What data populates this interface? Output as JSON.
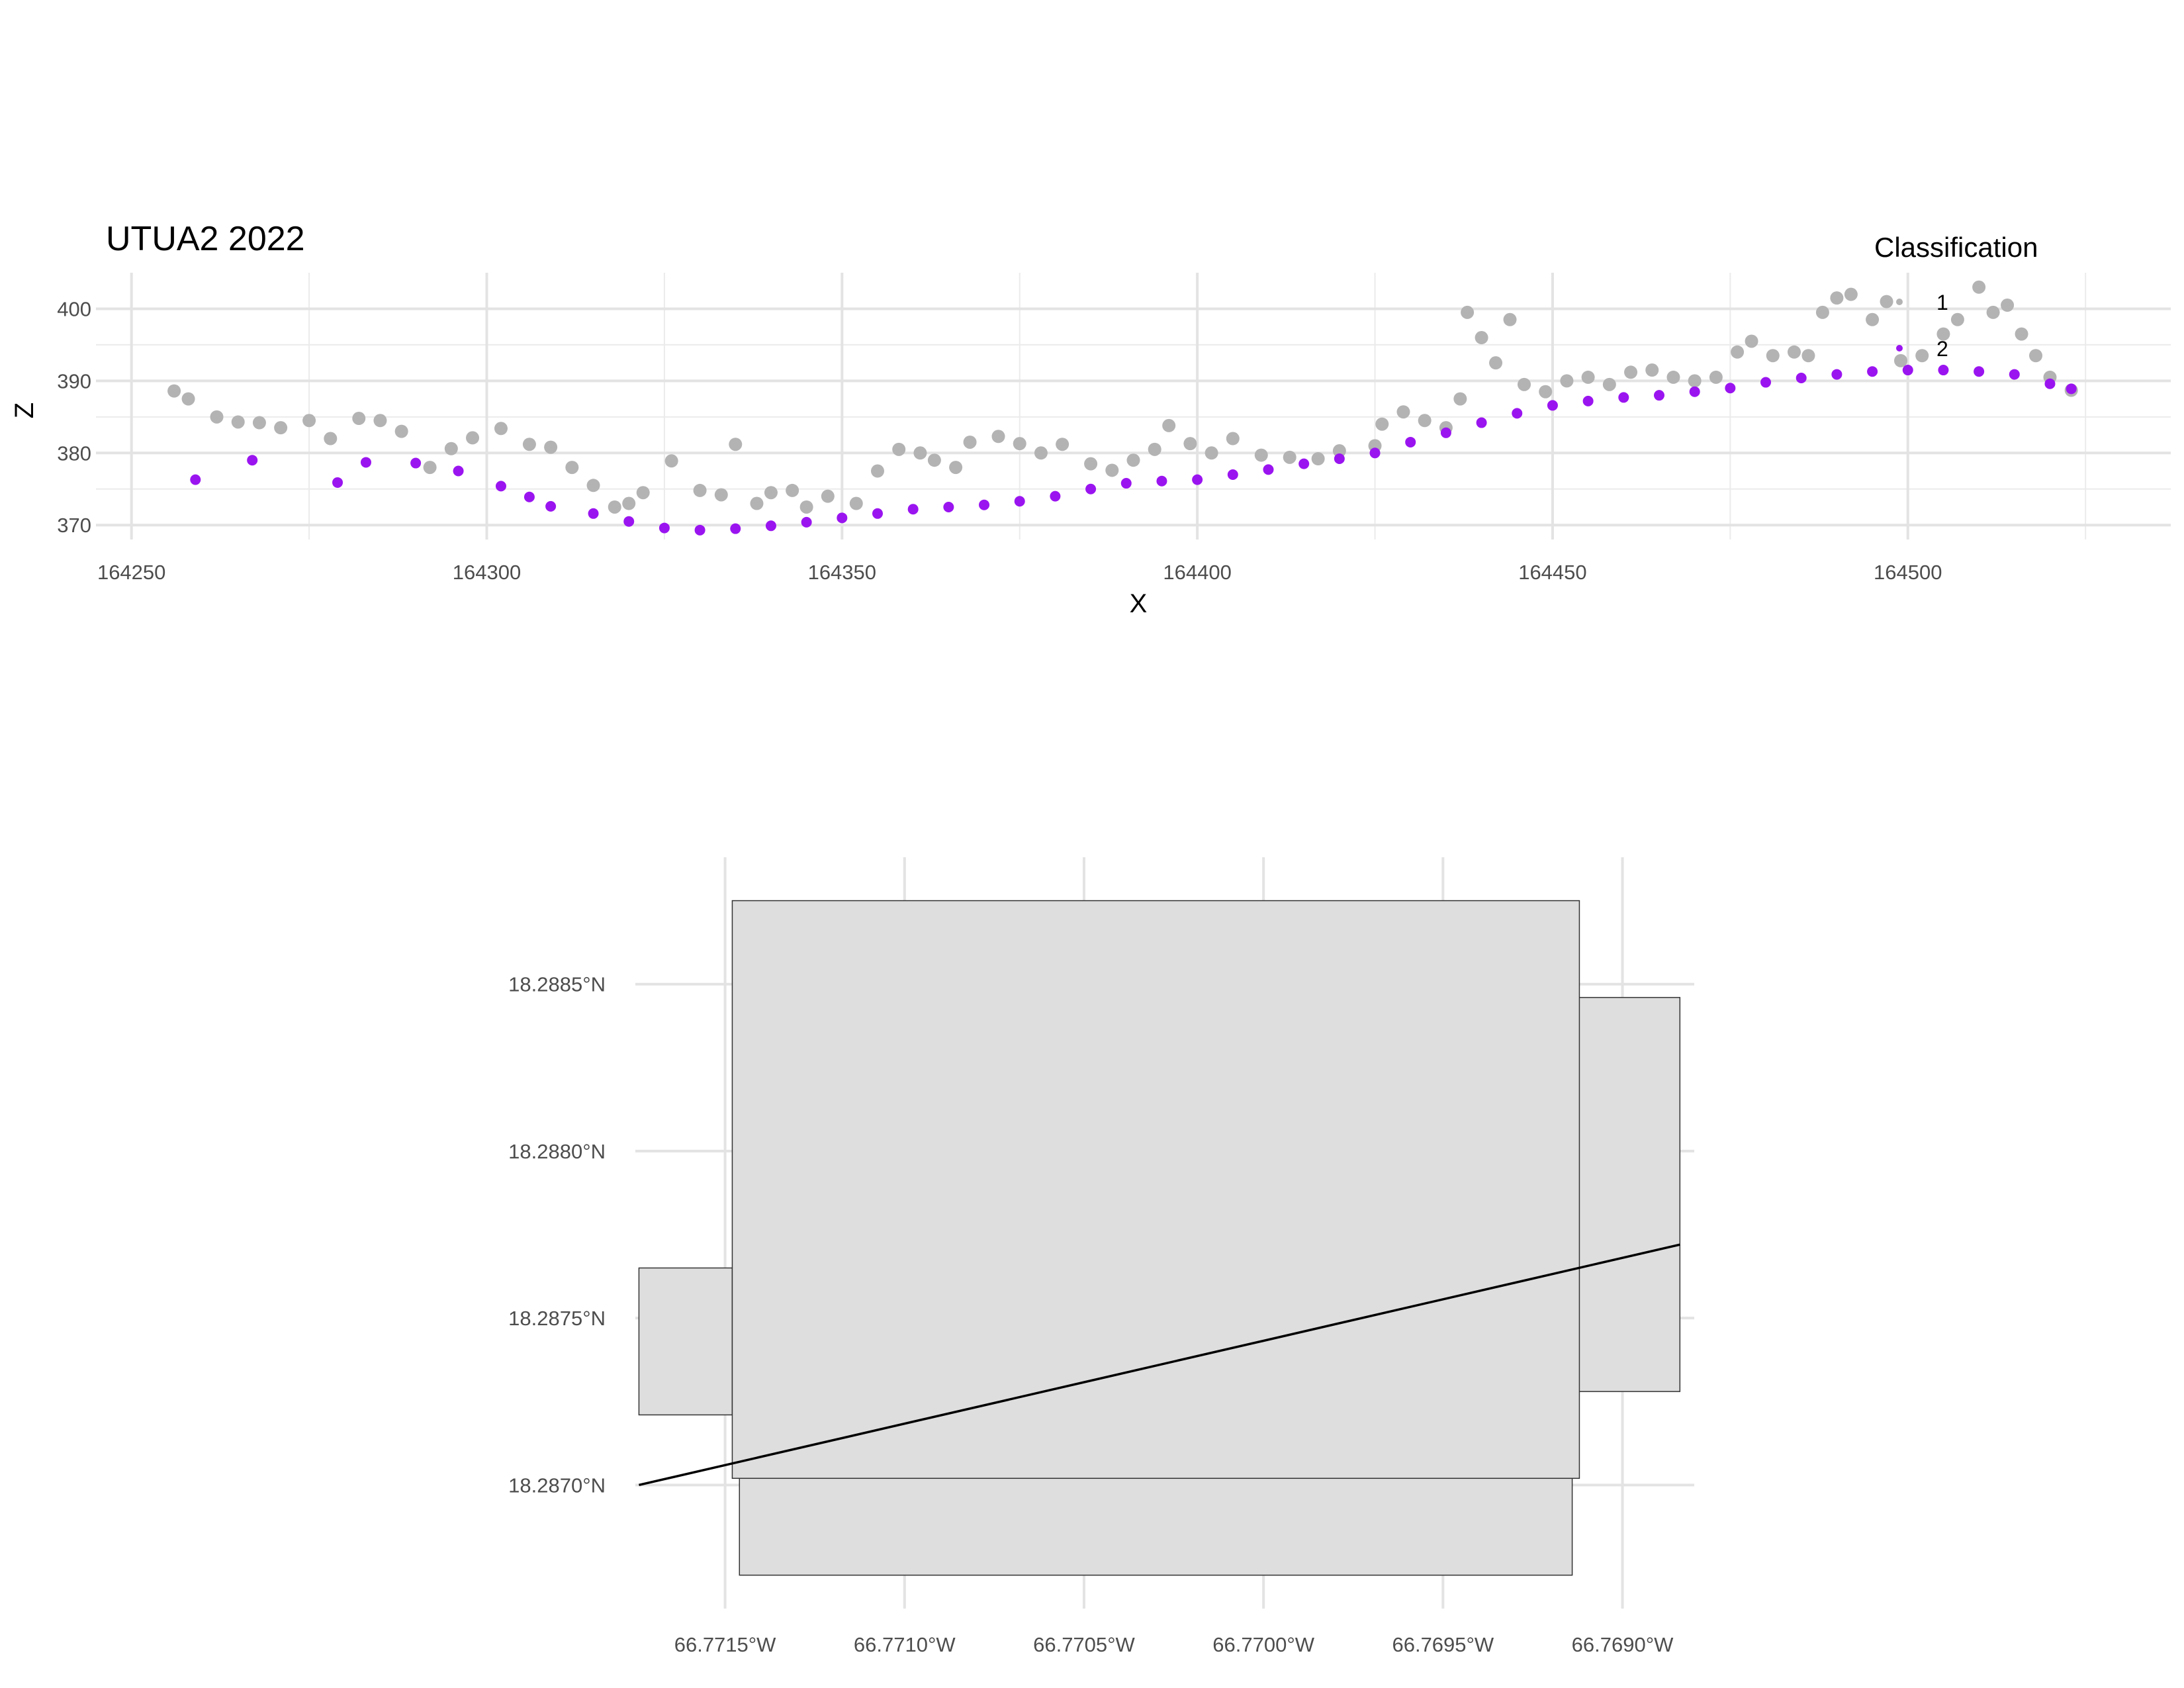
{
  "chart_data": [
    {
      "type": "scatter",
      "title": "UTUA2 2022",
      "xlabel": "X",
      "ylabel": "Z",
      "xlim": [
        164245,
        164537
      ],
      "ylim": [
        368,
        405
      ],
      "x_ticks": [
        164250,
        164300,
        164350,
        164400,
        164450,
        164500
      ],
      "y_ticks": [
        370,
        380,
        390,
        400
      ],
      "grid": true,
      "legend": {
        "title": "Classification",
        "position": "top-right",
        "entries": [
          "1",
          "2"
        ]
      },
      "colors": {
        "1": "#b3b3b3",
        "2": "#9a14f0"
      },
      "series": [
        {
          "name": "2",
          "points": [
            [
              164259,
              376.3
            ],
            [
              164267,
              379.0
            ],
            [
              164279,
              375.9
            ],
            [
              164283,
              378.7
            ],
            [
              164290,
              378.6
            ],
            [
              164296,
              377.5
            ],
            [
              164302,
              375.4
            ],
            [
              164306,
              373.9
            ],
            [
              164309,
              372.6
            ],
            [
              164315,
              371.6
            ],
            [
              164320,
              370.5
            ],
            [
              164325,
              369.6
            ],
            [
              164330,
              369.3
            ],
            [
              164335,
              369.5
            ],
            [
              164340,
              369.9
            ],
            [
              164345,
              370.4
            ],
            [
              164350,
              371.0
            ],
            [
              164355,
              371.6
            ],
            [
              164360,
              372.2
            ],
            [
              164365,
              372.5
            ],
            [
              164370,
              372.8
            ],
            [
              164375,
              373.3
            ],
            [
              164380,
              374.0
            ],
            [
              164385,
              375.0
            ],
            [
              164390,
              375.8
            ],
            [
              164395,
              376.1
            ],
            [
              164400,
              376.3
            ],
            [
              164405,
              377.0
            ],
            [
              164410,
              377.7
            ],
            [
              164415,
              378.5
            ],
            [
              164420,
              379.2
            ],
            [
              164425,
              380.0
            ],
            [
              164430,
              381.5
            ],
            [
              164435,
              382.8
            ],
            [
              164440,
              384.2
            ],
            [
              164445,
              385.5
            ],
            [
              164450,
              386.6
            ],
            [
              164455,
              387.2
            ],
            [
              164460,
              387.7
            ],
            [
              164465,
              388.0
            ],
            [
              164470,
              388.5
            ],
            [
              164475,
              389.0
            ],
            [
              164480,
              389.8
            ],
            [
              164485,
              390.4
            ],
            [
              164490,
              390.9
            ],
            [
              164495,
              391.3
            ],
            [
              164500,
              391.5
            ],
            [
              164505,
              391.5
            ],
            [
              164510,
              391.3
            ],
            [
              164515,
              390.9
            ],
            [
              164520,
              389.6
            ],
            [
              164523,
              388.9
            ]
          ]
        },
        {
          "name": "1",
          "points": [
            [
              164256,
              388.6
            ],
            [
              164258,
              387.5
            ],
            [
              164262,
              385.0
            ],
            [
              164265,
              384.3
            ],
            [
              164268,
              384.2
            ],
            [
              164271,
              383.5
            ],
            [
              164275,
              384.5
            ],
            [
              164278,
              382.0
            ],
            [
              164282,
              384.8
            ],
            [
              164285,
              384.5
            ],
            [
              164288,
              383.0
            ],
            [
              164292,
              378.0
            ],
            [
              164295,
              380.6
            ],
            [
              164298,
              382.1
            ],
            [
              164302,
              383.4
            ],
            [
              164306,
              381.2
            ],
            [
              164309,
              380.8
            ],
            [
              164312,
              378.0
            ],
            [
              164315,
              375.5
            ],
            [
              164318,
              372.5
            ],
            [
              164320,
              373.0
            ],
            [
              164322,
              374.5
            ],
            [
              164326,
              378.9
            ],
            [
              164330,
              374.8
            ],
            [
              164333,
              374.2
            ],
            [
              164335,
              381.2
            ],
            [
              164338,
              373.0
            ],
            [
              164340,
              374.5
            ],
            [
              164343,
              374.8
            ],
            [
              164345,
              372.5
            ],
            [
              164348,
              374.0
            ],
            [
              164352,
              373.0
            ],
            [
              164355,
              377.5
            ],
            [
              164358,
              380.5
            ],
            [
              164361,
              380.0
            ],
            [
              164363,
              379.0
            ],
            [
              164366,
              378.0
            ],
            [
              164368,
              381.5
            ],
            [
              164372,
              382.3
            ],
            [
              164375,
              381.3
            ],
            [
              164378,
              380.0
            ],
            [
              164381,
              381.2
            ],
            [
              164385,
              378.5
            ],
            [
              164388,
              377.6
            ],
            [
              164391,
              379.0
            ],
            [
              164394,
              380.5
            ],
            [
              164396,
              383.8
            ],
            [
              164399,
              381.3
            ],
            [
              164402,
              380.0
            ],
            [
              164405,
              382.0
            ],
            [
              164409,
              379.7
            ],
            [
              164413,
              379.4
            ],
            [
              164417,
              379.2
            ],
            [
              164420,
              380.3
            ],
            [
              164425,
              381.0
            ],
            [
              164426,
              384.0
            ],
            [
              164429,
              385.7
            ],
            [
              164432,
              384.5
            ],
            [
              164435,
              383.5
            ],
            [
              164437,
              387.5
            ],
            [
              164438,
              399.5
            ],
            [
              164440,
              396.0
            ],
            [
              164442,
              392.5
            ],
            [
              164444,
              398.5
            ],
            [
              164446,
              389.5
            ],
            [
              164449,
              388.5
            ],
            [
              164452,
              390.0
            ],
            [
              164455,
              390.5
            ],
            [
              164458,
              389.5
            ],
            [
              164461,
              391.2
            ],
            [
              164464,
              391.5
            ],
            [
              164467,
              390.5
            ],
            [
              164470,
              390.0
            ],
            [
              164473,
              390.5
            ],
            [
              164476,
              394.0
            ],
            [
              164478,
              395.5
            ],
            [
              164481,
              393.5
            ],
            [
              164484,
              394.0
            ],
            [
              164486,
              393.5
            ],
            [
              164488,
              399.5
            ],
            [
              164490,
              401.5
            ],
            [
              164492,
              402.0
            ],
            [
              164495,
              398.5
            ],
            [
              164497,
              401.0
            ],
            [
              164499,
              392.8
            ],
            [
              164502,
              393.5
            ],
            [
              164505,
              396.5
            ],
            [
              164507,
              398.5
            ],
            [
              164510,
              403.0
            ],
            [
              164512,
              399.5
            ],
            [
              164514,
              400.5
            ],
            [
              164516,
              396.5
            ],
            [
              164518,
              393.5
            ],
            [
              164520,
              390.5
            ],
            [
              164523,
              388.7
            ]
          ]
        }
      ]
    },
    {
      "type": "map",
      "x_ticks": [
        "66.7715°W",
        "66.7710°W",
        "66.7705°W",
        "66.7700°W",
        "66.7695°W",
        "66.7690°W"
      ],
      "x_tick_values": [
        -66.7715,
        -66.771,
        -66.7705,
        -66.77,
        -66.7695,
        -66.769
      ],
      "y_ticks": [
        "18.2885°N",
        "18.2880°N",
        "18.2875°N",
        "18.2870°N"
      ],
      "y_tick_values": [
        18.2885,
        18.288,
        18.2875,
        18.287
      ],
      "xlim": [
        -66.77175,
        -66.7688
      ],
      "ylim": [
        18.28663,
        18.28888
      ],
      "grid": true,
      "tile_fill": "#dedede",
      "tiles": [
        {
          "lon": [
            -66.77174,
            -66.77148
          ],
          "lat": [
            18.28721,
            18.28765
          ]
        },
        {
          "lon": [
            -66.77146,
            -66.76914
          ],
          "lat": [
            18.28673,
            18.28702
          ]
        },
        {
          "lon": [
            -66.76914,
            -66.76884
          ],
          "lat": [
            18.28728,
            18.28846
          ]
        },
        {
          "lon": [
            -66.77148,
            -66.76912
          ],
          "lat": [
            18.28702,
            18.28875
          ]
        }
      ],
      "transect": {
        "lon": [
          -66.77174,
          -66.76884
        ],
        "lat": [
          18.287,
          18.28772
        ]
      }
    }
  ]
}
